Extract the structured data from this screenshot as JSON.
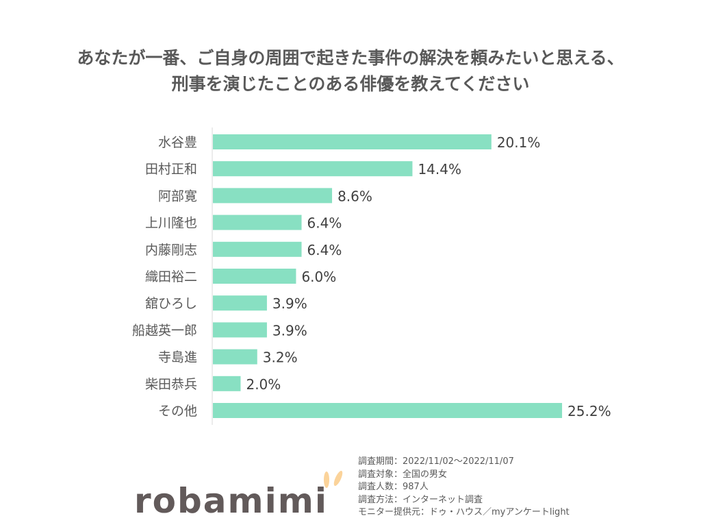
{
  "chart_data": {
    "type": "bar",
    "orientation": "horizontal",
    "title": [
      "あなたが一番、ご自身の周囲で起きた事件の解決を頼みたいと思える、",
      "刑事を演じたことのある俳優を教えてください"
    ],
    "categories": [
      "水谷豊",
      "田村正和",
      "阿部寛",
      "上川隆也",
      "内藤剛志",
      "織田裕二",
      "舘ひろし",
      "船越英一郎",
      "寺島進",
      "柴田恭兵",
      "その他"
    ],
    "values": [
      20.1,
      14.4,
      8.6,
      6.4,
      6.4,
      6.0,
      3.9,
      3.9,
      3.2,
      2.0,
      25.2
    ],
    "labels": [
      "20.1%",
      "14.4%",
      "8.6%",
      "6.4%",
      "6.4%",
      "6.0%",
      "3.9%",
      "3.9%",
      "3.2%",
      "2.0%",
      "25.2%"
    ],
    "bar_color": "#88e0c2",
    "grid": false
  },
  "notes": [
    "調査期間：2022/11/02～2022/11/07",
    "調査対象：全国の男女",
    "調査人数：987人",
    "調査方法：インターネット調査",
    "モニター提供元：ドゥ・ハウス／myアンケートlight"
  ],
  "logo": {
    "text": "robamimi",
    "color": "#625a5a",
    "accent": "#fbd39a"
  }
}
